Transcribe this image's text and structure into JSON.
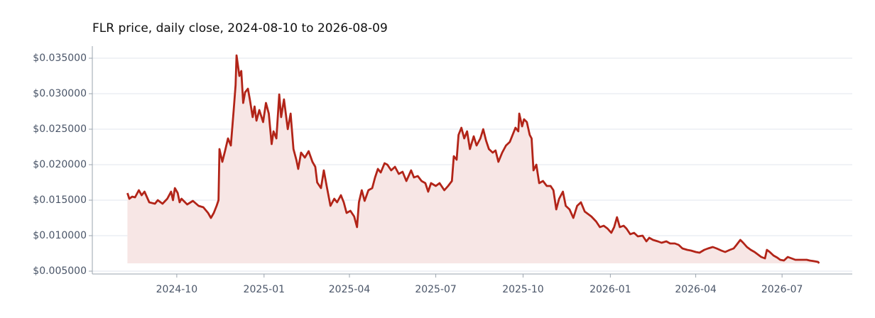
{
  "chart_data": {
    "type": "line",
    "title": "FLR price, daily close, 2024-08-10 to 2026-08-09",
    "color": "#b22418",
    "fill_color": "#f7e6e5",
    "grid": true,
    "xlim": [
      "2024-07-04",
      "2026-09-13"
    ],
    "ylim": [
      0.0046,
      0.0367
    ],
    "yticks": [
      {
        "value": 0.005,
        "label": "$0.005000"
      },
      {
        "value": 0.01,
        "label": "$0.010000"
      },
      {
        "value": 0.015,
        "label": "$0.015000"
      },
      {
        "value": 0.02,
        "label": "$0.020000"
      },
      {
        "value": 0.025,
        "label": "$0.025000"
      },
      {
        "value": 0.03,
        "label": "$0.030000"
      },
      {
        "value": 0.035,
        "label": "$0.035000"
      }
    ],
    "xticks": [
      {
        "value": "2024-10-01",
        "label": "2024-10"
      },
      {
        "value": "2025-01-01",
        "label": "2025-01"
      },
      {
        "value": "2025-04-01",
        "label": "2025-04"
      },
      {
        "value": "2025-07-01",
        "label": "2025-07"
      },
      {
        "value": "2025-10-01",
        "label": "2025-10"
      },
      {
        "value": "2026-01-01",
        "label": "2026-01"
      },
      {
        "value": "2026-04-01",
        "label": "2026-04"
      },
      {
        "value": "2026-07-01",
        "label": "2026-07"
      }
    ],
    "x": [
      "2024-08-10",
      "2024-08-12",
      "2024-08-15",
      "2024-08-18",
      "2024-08-22",
      "2024-08-25",
      "2024-08-28",
      "2024-09-02",
      "2024-09-08",
      "2024-09-11",
      "2024-09-16",
      "2024-09-21",
      "2024-09-25",
      "2024-09-27",
      "2024-09-29",
      "2024-10-02",
      "2024-10-04",
      "2024-10-06",
      "2024-10-12",
      "2024-10-18",
      "2024-10-24",
      "2024-10-29",
      "2024-11-03",
      "2024-11-06",
      "2024-11-09",
      "2024-11-12",
      "2024-11-14",
      "2024-11-15",
      "2024-11-18",
      "2024-11-21",
      "2024-11-24",
      "2024-11-27",
      "2024-11-30",
      "2024-12-02",
      "2024-12-03",
      "2024-12-06",
      "2024-12-08",
      "2024-12-10",
      "2024-12-12",
      "2024-12-15",
      "2024-12-17",
      "2024-12-20",
      "2024-12-22",
      "2024-12-24",
      "2024-12-27",
      "2024-12-31",
      "2025-01-03",
      "2025-01-06",
      "2025-01-09",
      "2025-01-11",
      "2025-01-14",
      "2025-01-17",
      "2025-01-19",
      "2025-01-22",
      "2025-01-26",
      "2025-01-29",
      "2025-02-01",
      "2025-02-04",
      "2025-02-06",
      "2025-02-09",
      "2025-02-13",
      "2025-02-17",
      "2025-02-21",
      "2025-02-24",
      "2025-02-26",
      "2025-03-02",
      "2025-03-05",
      "2025-03-08",
      "2025-03-12",
      "2025-03-16",
      "2025-03-19",
      "2025-03-23",
      "2025-03-26",
      "2025-03-29",
      "2025-04-02",
      "2025-04-06",
      "2025-04-09",
      "2025-04-11",
      "2025-04-14",
      "2025-04-17",
      "2025-04-21",
      "2025-04-25",
      "2025-04-28",
      "2025-05-01",
      "2025-05-04",
      "2025-05-08",
      "2025-05-11",
      "2025-05-15",
      "2025-05-19",
      "2025-05-23",
      "2025-05-27",
      "2025-05-31",
      "2025-06-05",
      "2025-06-08",
      "2025-06-12",
      "2025-06-16",
      "2025-06-20",
      "2025-06-23",
      "2025-06-26",
      "2025-07-01",
      "2025-07-05",
      "2025-07-10",
      "2025-07-14",
      "2025-07-18",
      "2025-07-20",
      "2025-07-23",
      "2025-07-25",
      "2025-07-28",
      "2025-07-31",
      "2025-08-03",
      "2025-08-06",
      "2025-08-10",
      "2025-08-13",
      "2025-08-17",
      "2025-08-20",
      "2025-08-23",
      "2025-08-26",
      "2025-08-30",
      "2025-09-02",
      "2025-09-05",
      "2025-09-09",
      "2025-09-13",
      "2025-09-17",
      "2025-09-20",
      "2025-09-23",
      "2025-09-26",
      "2025-09-27",
      "2025-09-30",
      "2025-10-02",
      "2025-10-05",
      "2025-10-08",
      "2025-10-10",
      "2025-10-12",
      "2025-10-15",
      "2025-10-18",
      "2025-10-22",
      "2025-10-26",
      "2025-10-30",
      "2025-11-02",
      "2025-11-05",
      "2025-11-08",
      "2025-11-12",
      "2025-11-15",
      "2025-11-19",
      "2025-11-23",
      "2025-11-27",
      "2025-12-01",
      "2025-12-05",
      "2025-12-09",
      "2025-12-12",
      "2025-12-17",
      "2025-12-21",
      "2025-12-25",
      "2025-12-29",
      "2026-01-02",
      "2026-01-05",
      "2026-01-08",
      "2026-01-11",
      "2026-01-15",
      "2026-01-18",
      "2026-01-22",
      "2026-01-26",
      "2026-01-30",
      "2026-02-04",
      "2026-02-08",
      "2026-02-11",
      "2026-02-15",
      "2026-02-20",
      "2026-02-24",
      "2026-03-01",
      "2026-03-05",
      "2026-03-10",
      "2026-03-14",
      "2026-03-18",
      "2026-03-23",
      "2026-03-27",
      "2026-04-01",
      "2026-04-05",
      "2026-04-10",
      "2026-04-14",
      "2026-04-19",
      "2026-04-23",
      "2026-04-28",
      "2026-05-02",
      "2026-05-07",
      "2026-05-11",
      "2026-05-14",
      "2026-05-18",
      "2026-05-21",
      "2026-05-25",
      "2026-05-29",
      "2026-06-02",
      "2026-06-05",
      "2026-06-09",
      "2026-06-13",
      "2026-06-15",
      "2026-06-18",
      "2026-06-22",
      "2026-06-26",
      "2026-06-29",
      "2026-07-03",
      "2026-07-07",
      "2026-07-11",
      "2026-07-15",
      "2026-07-19",
      "2026-07-23",
      "2026-07-27",
      "2026-07-30",
      "2026-08-04",
      "2026-08-08",
      "2026-08-09"
    ],
    "values": [
      0.016,
      0.0152,
      0.0155,
      0.0154,
      0.0164,
      0.0157,
      0.0162,
      0.0147,
      0.0145,
      0.015,
      0.0145,
      0.0152,
      0.0162,
      0.015,
      0.0167,
      0.016,
      0.0147,
      0.0152,
      0.0144,
      0.0149,
      0.0142,
      0.014,
      0.0132,
      0.0125,
      0.0132,
      0.0142,
      0.015,
      0.0222,
      0.0204,
      0.022,
      0.0237,
      0.0227,
      0.0277,
      0.0312,
      0.0354,
      0.0325,
      0.0332,
      0.0287,
      0.0302,
      0.0307,
      0.0292,
      0.0267,
      0.0282,
      0.0262,
      0.0277,
      0.026,
      0.0287,
      0.0272,
      0.0229,
      0.0247,
      0.0237,
      0.0299,
      0.0267,
      0.0292,
      0.025,
      0.0272,
      0.0222,
      0.0207,
      0.0194,
      0.0217,
      0.021,
      0.0219,
      0.0204,
      0.0197,
      0.0175,
      0.0167,
      0.0192,
      0.017,
      0.0142,
      0.0152,
      0.0147,
      0.0157,
      0.0147,
      0.0132,
      0.0135,
      0.0127,
      0.0112,
      0.0147,
      0.0164,
      0.0149,
      0.0164,
      0.0167,
      0.0182,
      0.0194,
      0.0189,
      0.0202,
      0.02,
      0.0192,
      0.0197,
      0.0187,
      0.019,
      0.0177,
      0.0192,
      0.0182,
      0.0184,
      0.0177,
      0.0174,
      0.0162,
      0.0174,
      0.017,
      0.0174,
      0.0164,
      0.017,
      0.0177,
      0.0212,
      0.0207,
      0.0242,
      0.0252,
      0.0237,
      0.0247,
      0.0222,
      0.024,
      0.0227,
      0.0237,
      0.025,
      0.0234,
      0.0222,
      0.0217,
      0.022,
      0.0204,
      0.0217,
      0.0227,
      0.0232,
      0.0242,
      0.0252,
      0.0247,
      0.0272,
      0.0254,
      0.0264,
      0.026,
      0.0242,
      0.0237,
      0.0192,
      0.02,
      0.0174,
      0.0177,
      0.017,
      0.017,
      0.0164,
      0.0137,
      0.0152,
      0.0162,
      0.0142,
      0.0137,
      0.0125,
      0.0142,
      0.0147,
      0.0134,
      0.013,
      0.0127,
      0.012,
      0.0112,
      0.0114,
      0.011,
      0.0104,
      0.0112,
      0.0126,
      0.0112,
      0.0114,
      0.011,
      0.0102,
      0.0104,
      0.0099,
      0.01,
      0.0092,
      0.0097,
      0.0094,
      0.0092,
      0.009,
      0.0092,
      0.0089,
      0.0089,
      0.0087,
      0.0082,
      0.008,
      0.0079,
      0.0077,
      0.0076,
      0.008,
      0.0082,
      0.0084,
      0.0082,
      0.0079,
      0.0077,
      0.008,
      0.0082,
      0.0087,
      0.0094,
      0.009,
      0.0084,
      0.008,
      0.0077,
      0.0074,
      0.007,
      0.0068,
      0.008,
      0.0077,
      0.0072,
      0.0069,
      0.0066,
      0.0065,
      0.007,
      0.0068,
      0.0066,
      0.0066,
      0.0066,
      0.0066,
      0.0065,
      0.0064,
      0.0063,
      0.0061
    ]
  }
}
